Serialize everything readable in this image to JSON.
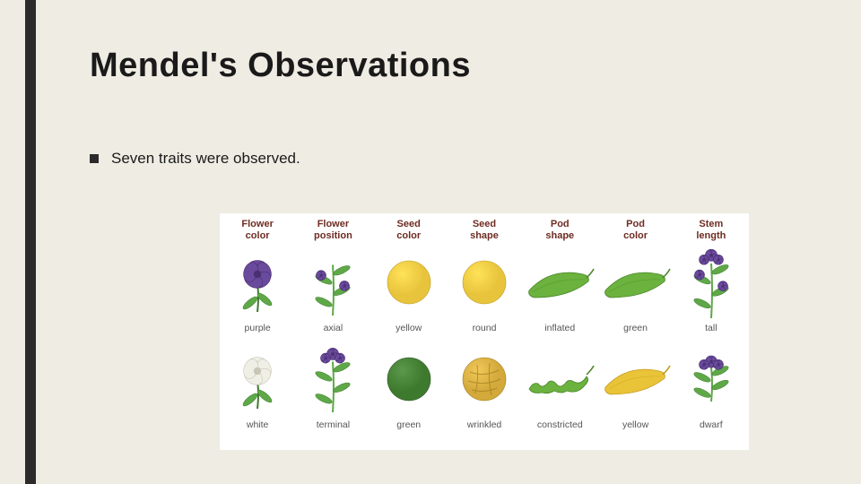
{
  "background_color": "#efece3",
  "accent_bar_color": "#2b2b2b",
  "title": "Mendel's  Observations",
  "bullet_text": "Seven traits were observed.",
  "chart": {
    "background": "#ffffff",
    "header_color": "#6e2c22",
    "label_color": "#555555",
    "columns": [
      {
        "header": "Flower\ncolor",
        "rows": [
          {
            "icon": "flower-purple",
            "label": "purple"
          },
          {
            "icon": "flower-white",
            "label": "white"
          }
        ]
      },
      {
        "header": "Flower\nposition",
        "rows": [
          {
            "icon": "plant-axial",
            "label": "axial"
          },
          {
            "icon": "plant-terminal",
            "label": "terminal"
          }
        ]
      },
      {
        "header": "Seed\ncolor",
        "rows": [
          {
            "icon": "seed-yellow",
            "label": "yellow"
          },
          {
            "icon": "seed-green",
            "label": "green"
          }
        ]
      },
      {
        "header": "Seed\nshape",
        "rows": [
          {
            "icon": "seed-round",
            "label": "round"
          },
          {
            "icon": "seed-wrinkled",
            "label": "wrinkled"
          }
        ]
      },
      {
        "header": "Pod\nshape",
        "rows": [
          {
            "icon": "pod-inflated",
            "label": "inflated"
          },
          {
            "icon": "pod-constricted",
            "label": "constricted"
          }
        ]
      },
      {
        "header": "Pod\ncolor",
        "rows": [
          {
            "icon": "pod-green",
            "label": "green"
          },
          {
            "icon": "pod-yellow",
            "label": "yellow"
          }
        ]
      },
      {
        "header": "Stem\nlength",
        "rows": [
          {
            "icon": "plant-tall",
            "label": "tall"
          },
          {
            "icon": "plant-dwarf",
            "label": "dwarf"
          }
        ]
      }
    ],
    "palette": {
      "purple": "#6a4a9c",
      "purple_dark": "#4a2f72",
      "leaf_green": "#5ea847",
      "leaf_dark": "#3f7a2f",
      "flower_white": "#f0efe6",
      "flower_white_edge": "#c8c6b6",
      "seed_yellow": "#e7c43b",
      "seed_yellow_dark": "#c29a1e",
      "seed_green": "#3e7a2e",
      "seed_green_dark": "#2a5520",
      "wrinkled": "#d2a93a",
      "wrinkled_dark": "#a07c1c",
      "pod_green": "#6bb23e",
      "pod_green_dark": "#4a8528",
      "pod_yellow": "#e9c338",
      "pod_yellow_dark": "#c49a1a",
      "stem": "#5ea847"
    }
  }
}
